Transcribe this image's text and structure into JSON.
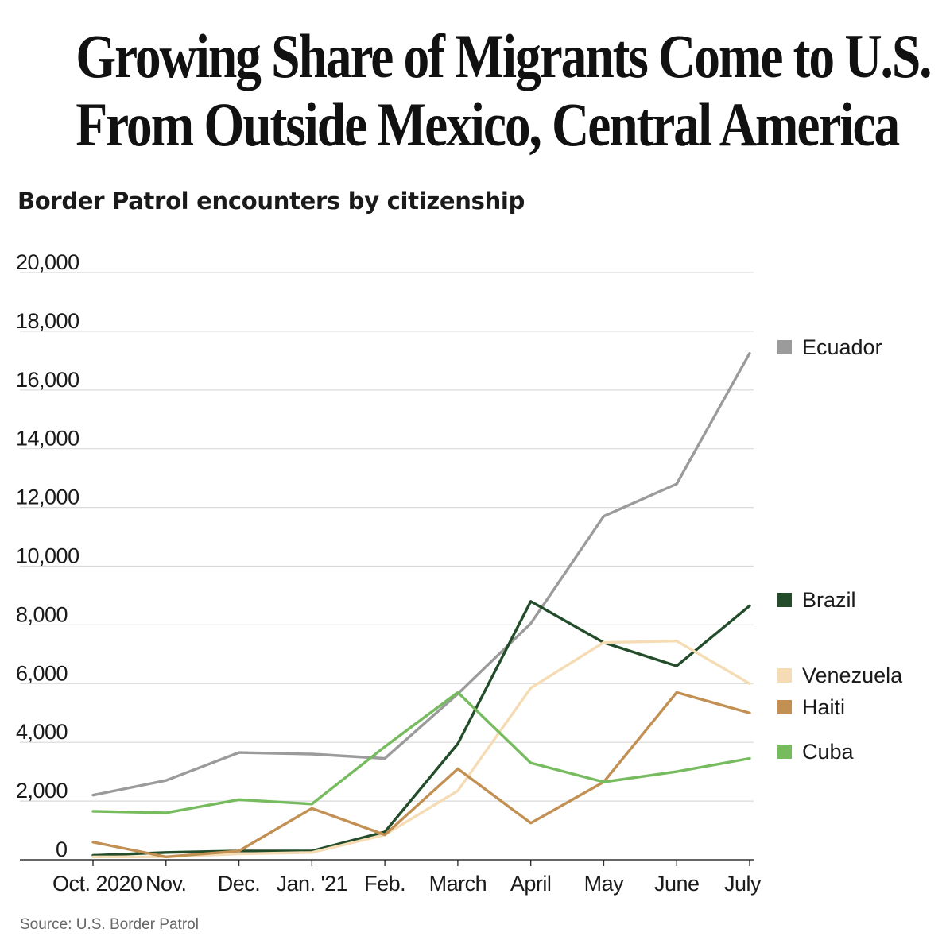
{
  "headline": {
    "line1": "Growing Share of Migrants Come to U.S.",
    "line2": "From Outside Mexico, Central America"
  },
  "source": "Source: U.S. Border Patrol",
  "chart_data": {
    "type": "line",
    "title": "Growing Share of Migrants Come to U.S. From Outside Mexico, Central America",
    "subtitle": "Border Patrol encounters by citizenship",
    "xlabel": "",
    "ylabel": "",
    "categories": [
      "Oct. 2020",
      "Nov.",
      "Dec.",
      "Jan. '21",
      "Feb.",
      "March",
      "April",
      "May",
      "June",
      "July"
    ],
    "ylim": [
      0,
      20000
    ],
    "yticks": [
      0,
      2000,
      4000,
      6000,
      8000,
      10000,
      12000,
      14000,
      16000,
      18000,
      20000
    ],
    "ytick_labels": [
      "0",
      "2,000",
      "4,000",
      "6,000",
      "8,000",
      "10,000",
      "12,000",
      "14,000",
      "16,000",
      "18,000",
      "20,000"
    ],
    "grid": true,
    "legend_position": "right",
    "series": [
      {
        "name": "Ecuador",
        "color": "#9b9b9b",
        "values": [
          2200,
          2700,
          3650,
          3600,
          3450,
          5650,
          8050,
          11700,
          12800,
          17250
        ]
      },
      {
        "name": "Brazil",
        "color": "#234d2a",
        "values": [
          150,
          250,
          300,
          300,
          950,
          3950,
          8800,
          7400,
          6600,
          8650
        ]
      },
      {
        "name": "Venezuela",
        "color": "#f5dcb4",
        "values": [
          100,
          100,
          200,
          250,
          850,
          2350,
          5850,
          7400,
          7450,
          6000
        ]
      },
      {
        "name": "Haiti",
        "color": "#c29052",
        "values": [
          600,
          100,
          300,
          1750,
          850,
          3100,
          1250,
          2650,
          5700,
          5000
        ]
      },
      {
        "name": "Cuba",
        "color": "#76bb5e",
        "values": [
          1650,
          1600,
          2050,
          1900,
          3850,
          5700,
          3300,
          2650,
          3000,
          3450
        ]
      }
    ]
  }
}
